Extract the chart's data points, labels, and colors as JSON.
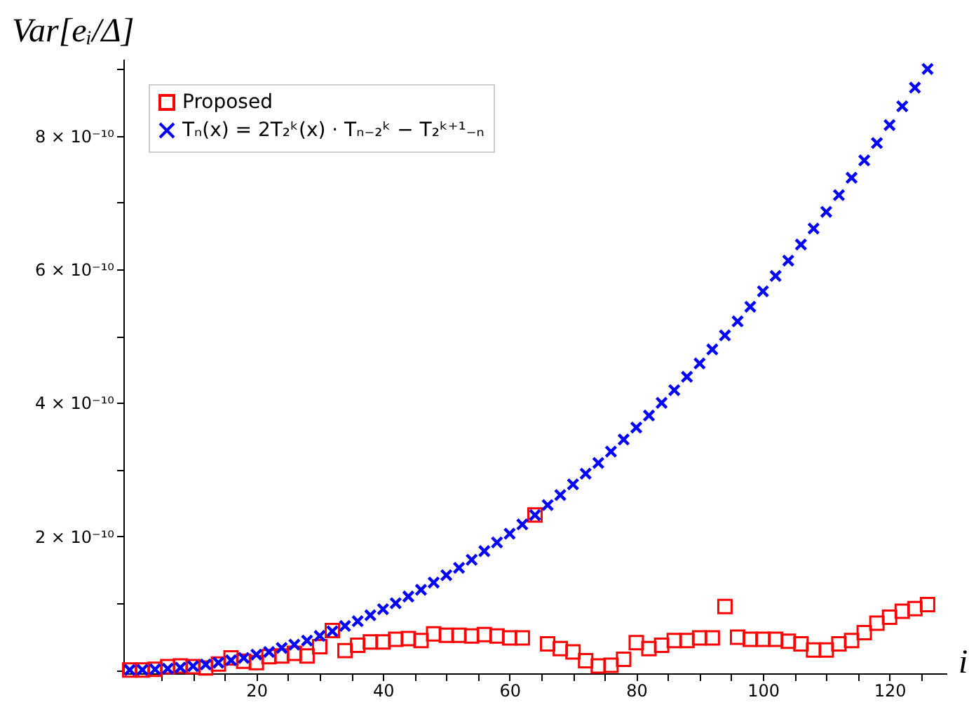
{
  "chart_data": {
    "type": "scatter",
    "ylabel": "Var[eᵢ/Δ]",
    "xlabel": "i",
    "x": [
      0,
      2,
      4,
      6,
      8,
      10,
      12,
      14,
      16,
      18,
      20,
      22,
      24,
      26,
      28,
      30,
      32,
      34,
      36,
      38,
      40,
      42,
      44,
      46,
      48,
      50,
      52,
      54,
      56,
      58,
      60,
      62,
      64,
      66,
      68,
      70,
      72,
      74,
      76,
      78,
      80,
      82,
      84,
      86,
      88,
      90,
      92,
      94,
      96,
      98,
      100,
      102,
      104,
      106,
      108,
      110,
      112,
      114,
      116,
      118,
      120,
      122,
      124,
      126
    ],
    "series": [
      {
        "name": "Proposed",
        "color": "#ff0000",
        "marker": "square",
        "values": [
          0,
          0,
          1e-12,
          5e-12,
          6e-12,
          5e-12,
          3e-12,
          9e-12,
          1.8e-11,
          1.3e-11,
          1.1e-11,
          2e-11,
          2.1e-11,
          2.5e-11,
          2.1e-11,
          3.5e-11,
          5.9e-11,
          2.9e-11,
          3.7e-11,
          4.2e-11,
          4.2e-11,
          4.6e-11,
          4.7e-11,
          4.4e-11,
          5.4e-11,
          5.2e-11,
          5.2e-11,
          5.1e-11,
          5.3e-11,
          5.1e-11,
          4.8e-11,
          4.8e-11,
          2.32e-10,
          3.9e-11,
          3.2e-11,
          2.7e-11,
          1.4e-11,
          6e-12,
          7e-12,
          1.6e-11,
          4.1e-11,
          3.2e-11,
          3.7e-11,
          4.4e-11,
          4.4e-11,
          4.8e-11,
          4.8e-11,
          9.5e-11,
          4.9e-11,
          4.6e-11,
          4.6e-11,
          4.6e-11,
          4.3e-11,
          3.9e-11,
          3e-11,
          3e-11,
          3.9e-11,
          4.4e-11,
          5.6e-11,
          7e-11,
          7.9e-11,
          8.8e-11,
          9.2e-11,
          9.8e-11
        ]
      },
      {
        "name": "Tₙ(x) = 2T₂ᵏ(x) · Tₙ₋₂ᵏ − T₂ᵏ⁺¹₋ₙ",
        "color": "#0000ff",
        "marker": "cross",
        "values": [
          0,
          2e-13,
          9e-13,
          2e-12,
          3.6e-12,
          5.7e-12,
          8.2e-12,
          1.1e-11,
          1.45e-11,
          1.8e-11,
          2.3e-11,
          2.7e-11,
          3.3e-11,
          3.8e-11,
          4.4e-11,
          5.1e-11,
          5.8e-11,
          6.6e-11,
          7.3e-11,
          8.2e-11,
          9.1e-11,
          1e-10,
          1.1e-10,
          1.2e-10,
          1.31e-10,
          1.42e-10,
          1.53e-10,
          1.65e-10,
          1.78e-10,
          1.91e-10,
          2.04e-10,
          2.18e-10,
          2.32e-10,
          2.47e-10,
          2.62e-10,
          2.78e-10,
          2.94e-10,
          3.1e-10,
          3.27e-10,
          3.45e-10,
          3.63e-10,
          3.81e-10,
          4e-10,
          4.19e-10,
          4.39e-10,
          4.59e-10,
          4.8e-10,
          5.01e-10,
          5.22e-10,
          5.44e-10,
          5.67e-10,
          5.9e-10,
          6.13e-10,
          6.37e-10,
          6.61e-10,
          6.86e-10,
          7.11e-10,
          7.37e-10,
          7.63e-10,
          7.89e-10,
          8.16e-10,
          8.44e-10,
          8.72e-10,
          9e-10
        ]
      }
    ],
    "xlim": [
      -1,
      129
    ],
    "xticks": [
      {
        "value": 5,
        "label": null
      },
      {
        "value": 10,
        "label": null
      },
      {
        "value": 15,
        "label": null
      },
      20,
      {
        "value": 25,
        "label": null
      },
      {
        "value": 30,
        "label": null
      },
      {
        "value": 35,
        "label": null
      },
      40,
      {
        "value": 45,
        "label": null
      },
      {
        "value": 50,
        "label": null
      },
      {
        "value": 55,
        "label": null
      },
      60,
      {
        "value": 65,
        "label": null
      },
      {
        "value": 70,
        "label": null
      },
      {
        "value": 75,
        "label": null
      },
      80,
      {
        "value": 85,
        "label": null
      },
      {
        "value": 90,
        "label": null
      },
      {
        "value": 95,
        "label": null
      },
      100,
      {
        "value": 105,
        "label": null
      },
      {
        "value": 110,
        "label": null
      },
      {
        "value": 115,
        "label": null
      },
      120,
      {
        "value": 125,
        "label": null
      }
    ],
    "ylim": [
      -5e-12,
      9.15e-10
    ],
    "yticks": [
      {
        "value": 0,
        "label": null
      },
      {
        "value": 1e-10,
        "label": null
      },
      {
        "value": 2e-10,
        "label": "2 × 10⁻¹⁰"
      },
      {
        "value": 3e-10,
        "label": null
      },
      {
        "value": 4e-10,
        "label": "4 × 10⁻¹⁰"
      },
      {
        "value": 5e-10,
        "label": null
      },
      {
        "value": 6e-10,
        "label": "6 × 10⁻¹⁰"
      },
      {
        "value": 7e-10,
        "label": null
      },
      {
        "value": 8e-10,
        "label": "8 × 10⁻¹⁰"
      },
      {
        "value": 9e-10,
        "label": null
      }
    ],
    "grid": false,
    "legend": "top left"
  }
}
